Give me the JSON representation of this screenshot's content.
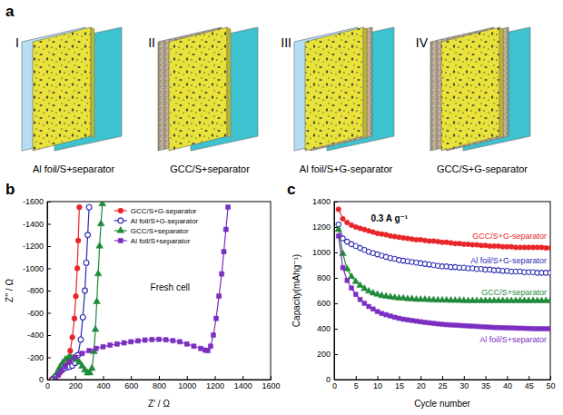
{
  "diagram": {
    "panel_label": "a",
    "items": [
      {
        "numeral": "I",
        "label": "Al foil/S+separator"
      },
      {
        "numeral": "II",
        "label": "GCC/S+separator"
      },
      {
        "numeral": "III",
        "label": "Al foil/S+G-separator"
      },
      {
        "numeral": "IV",
        "label": "GCC/S+G-separator"
      }
    ]
  },
  "chart_data": [
    {
      "panel_label": "b",
      "type": "line",
      "annotation": "Fresh cell",
      "x_label": "Z' / Ω",
      "y_label": "Z'' / Ω",
      "xlim": [
        0,
        1600
      ],
      "xticks": [
        0,
        200,
        400,
        600,
        800,
        1000,
        1200,
        1400,
        1600
      ],
      "ylim": [
        0,
        -1600
      ],
      "yticks": [
        0,
        -200,
        -400,
        -600,
        -800,
        -1000,
        -1200,
        -1400,
        -1600
      ],
      "legend": "top",
      "series": [
        {
          "name": "GCC/S+G-separator",
          "color": "#e8262a",
          "marker": "circle",
          "x": [
            30,
            45,
            60,
            75,
            90,
            105,
            120,
            135,
            150,
            165,
            180,
            195,
            205,
            215,
            222,
            230
          ],
          "values": [
            0,
            -15,
            -30,
            -45,
            -60,
            -80,
            -100,
            -130,
            -180,
            -260,
            -380,
            -550,
            -750,
            -1000,
            -1250,
            -1550
          ]
        },
        {
          "name": "Al foil/S+G-separator",
          "color": "#2b2bb5",
          "marker": "circle-open",
          "x": [
            40,
            60,
            80,
            100,
            120,
            140,
            160,
            180,
            200,
            220,
            240,
            255,
            270,
            280,
            290,
            300
          ],
          "values": [
            0,
            -30,
            -60,
            -85,
            -100,
            -110,
            -115,
            -125,
            -150,
            -220,
            -360,
            -560,
            -800,
            -1050,
            -1300,
            -1550
          ]
        },
        {
          "name": "GCC/S+separator",
          "color": "#1e8a3a",
          "marker": "triangle",
          "x": [
            50,
            70,
            90,
            110,
            130,
            150,
            170,
            190,
            210,
            230,
            250,
            270,
            290,
            305,
            320,
            335,
            345,
            355,
            365,
            375,
            385,
            395
          ],
          "values": [
            0,
            -60,
            -110,
            -150,
            -180,
            -195,
            -200,
            -195,
            -180,
            -155,
            -120,
            -85,
            -60,
            -60,
            -100,
            -250,
            -450,
            -700,
            -950,
            -1200,
            -1400,
            -1580
          ]
        },
        {
          "name": "Al foil/S+separator",
          "color": "#7b2ec0",
          "marker": "square",
          "x": [
            60,
            80,
            100,
            130,
            160,
            200,
            250,
            300,
            350,
            400,
            450,
            500,
            550,
            600,
            650,
            700,
            750,
            800,
            850,
            900,
            950,
            1000,
            1050,
            1100,
            1130,
            1150,
            1170,
            1190,
            1210,
            1230,
            1250,
            1265,
            1280,
            1295
          ],
          "values": [
            0,
            -40,
            -80,
            -120,
            -160,
            -200,
            -235,
            -260,
            -280,
            -295,
            -310,
            -320,
            -330,
            -340,
            -348,
            -355,
            -360,
            -362,
            -358,
            -350,
            -340,
            -320,
            -300,
            -280,
            -265,
            -260,
            -300,
            -400,
            -550,
            -750,
            -950,
            -1150,
            -1350,
            -1550
          ]
        }
      ]
    },
    {
      "panel_label": "c",
      "type": "line",
      "annotation": "0.3 A g⁻¹",
      "x_label": "Cycle number",
      "y_label": "Capacity(mAhg⁻¹)",
      "x": [
        1,
        2,
        3,
        4,
        5,
        6,
        7,
        8,
        9,
        10,
        11,
        12,
        13,
        14,
        15,
        16,
        17,
        18,
        19,
        20,
        21,
        22,
        23,
        24,
        25,
        26,
        27,
        28,
        29,
        30,
        31,
        32,
        33,
        34,
        35,
        36,
        37,
        38,
        39,
        40,
        41,
        42,
        43,
        44,
        45,
        46,
        47,
        48,
        49,
        50
      ],
      "xlim": [
        0,
        50
      ],
      "xticks": [
        0,
        5,
        10,
        15,
        20,
        25,
        30,
        35,
        40,
        45,
        50
      ],
      "ylim": [
        0,
        1400
      ],
      "yticks": [
        0,
        200,
        400,
        600,
        800,
        1000,
        1200,
        1400
      ],
      "series": [
        {
          "name": "GCC/S+G-separator",
          "color": "#e8262a",
          "marker": "circle",
          "values": [
            1340,
            1265,
            1235,
            1215,
            1200,
            1190,
            1180,
            1170,
            1160,
            1150,
            1145,
            1140,
            1130,
            1125,
            1120,
            1115,
            1110,
            1105,
            1100,
            1100,
            1095,
            1090,
            1090,
            1085,
            1080,
            1080,
            1075,
            1070,
            1070,
            1065,
            1065,
            1060,
            1060,
            1055,
            1055,
            1050,
            1050,
            1050,
            1045,
            1045,
            1045,
            1040,
            1040,
            1040,
            1040,
            1040,
            1040,
            1040,
            1035,
            1035
          ]
        },
        {
          "name": "Al foil/S+G-separator",
          "color": "#2b2bb5",
          "marker": "circle-open",
          "values": [
            1220,
            1110,
            1085,
            1065,
            1050,
            1035,
            1020,
            1005,
            995,
            985,
            975,
            965,
            955,
            950,
            940,
            935,
            930,
            925,
            920,
            915,
            910,
            905,
            900,
            895,
            890,
            890,
            885,
            885,
            880,
            880,
            875,
            875,
            870,
            870,
            865,
            865,
            860,
            860,
            855,
            855,
            850,
            850,
            850,
            845,
            845,
            845,
            840,
            840,
            840,
            840
          ]
        },
        {
          "name": "GCC/S+separator",
          "color": "#1e8a3a",
          "marker": "triangle",
          "values": [
            1180,
            990,
            870,
            810,
            770,
            740,
            715,
            695,
            680,
            670,
            660,
            655,
            650,
            645,
            640,
            640,
            635,
            635,
            630,
            630,
            630,
            628,
            626,
            625,
            625,
            624,
            623,
            622,
            622,
            621,
            620,
            620,
            620,
            620,
            620,
            620,
            620,
            620,
            620,
            620,
            620,
            620,
            620,
            620,
            620,
            620,
            620,
            620,
            620,
            620
          ]
        },
        {
          "name": "Al foil/S+separator",
          "color": "#7b2ec0",
          "marker": "square",
          "values": [
            1130,
            880,
            780,
            720,
            670,
            630,
            600,
            575,
            555,
            535,
            520,
            510,
            500,
            490,
            482,
            475,
            470,
            465,
            460,
            455,
            450,
            446,
            442,
            438,
            435,
            432,
            430,
            428,
            426,
            424,
            422,
            420,
            418,
            416,
            414,
            412,
            410,
            409,
            408,
            407,
            406,
            405,
            404,
            403,
            402,
            401,
            400,
            400,
            400,
            400
          ]
        }
      ]
    }
  ]
}
